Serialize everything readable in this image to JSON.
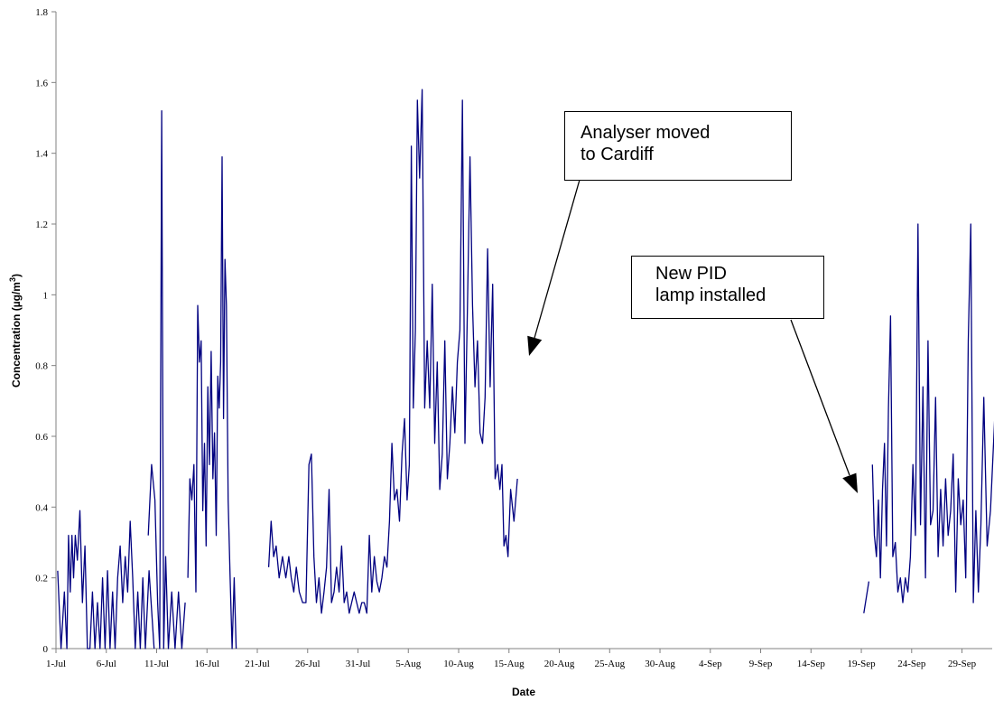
{
  "chart_data": {
    "type": "line",
    "xlabel": "Date",
    "ylabel": "Concentration (µg/m",
    "ylabel_superscript": "3",
    "ylabel_suffix": ")",
    "ylim": [
      0,
      1.8
    ],
    "y_ticks": [
      "0",
      "0.2",
      "0.4",
      "0.6",
      "0.8",
      "1",
      "1.2",
      "1.4",
      "1.6",
      "1.8"
    ],
    "x_ticks": [
      "1-Jul",
      "6-Jul",
      "11-Jul",
      "16-Jul",
      "21-Jul",
      "26-Jul",
      "31-Jul",
      "5-Aug",
      "10-Aug",
      "15-Aug",
      "20-Aug",
      "25-Aug",
      "30-Aug",
      "4-Sep",
      "9-Sep",
      "14-Sep",
      "19-Sep",
      "24-Sep",
      "29-Sep"
    ],
    "x_start": "2000-07-01",
    "x_end": "2000-10-02",
    "grid": false,
    "line_color": "#000080",
    "series": [
      {
        "name": "",
        "segments": [
          [
            [
              "2000-07-01",
              0.22
            ],
            [
              "2000-07-01",
              0.0
            ],
            [
              "2000-07-01",
              0.16
            ],
            [
              "2000-07-02",
              0.0
            ],
            [
              "2000-07-02",
              0.32
            ],
            [
              "2000-07-02",
              0.16
            ],
            [
              "2000-07-02",
              0.32
            ],
            [
              "2000-07-02",
              0.2
            ],
            [
              "2000-07-02",
              0.32
            ],
            [
              "2000-07-03",
              0.25
            ],
            [
              "2000-07-03",
              0.39
            ],
            [
              "2000-07-03",
              0.13
            ],
            [
              "2000-07-03",
              0.29
            ],
            [
              "2000-07-04",
              0.0
            ],
            [
              "2000-07-04",
              0.0
            ],
            [
              "2000-07-04",
              0.16
            ],
            [
              "2000-07-04",
              0.0
            ],
            [
              "2000-07-05",
              0.13
            ],
            [
              "2000-07-05",
              0.0
            ],
            [
              "2000-07-05",
              0.2
            ],
            [
              "2000-07-05",
              0.0
            ],
            [
              "2000-07-06",
              0.22
            ],
            [
              "2000-07-06",
              0.0
            ],
            [
              "2000-07-06",
              0.16
            ],
            [
              "2000-07-06",
              0.0
            ],
            [
              "2000-07-07",
              0.2
            ],
            [
              "2000-07-07",
              0.29
            ],
            [
              "2000-07-07",
              0.13
            ],
            [
              "2000-07-07",
              0.26
            ],
            [
              "2000-07-08",
              0.16
            ],
            [
              "2000-07-08",
              0.36
            ],
            [
              "2000-07-08",
              0.2
            ],
            [
              "2000-07-08",
              0.0
            ],
            [
              "2000-07-09",
              0.16
            ],
            [
              "2000-07-09",
              0.0
            ],
            [
              "2000-07-09",
              0.2
            ],
            [
              "2000-07-09",
              0.0
            ],
            [
              "2000-07-10",
              0.22
            ],
            [
              "2000-07-10",
              0.0
            ]
          ],
          [
            [
              "2000-07-10",
              0.32
            ],
            [
              "2000-07-10",
              0.52
            ],
            [
              "2000-07-10",
              0.42
            ],
            [
              "2000-07-11",
              0.13
            ],
            [
              "2000-07-11",
              0.0
            ],
            [
              "2000-07-11",
              1.52
            ],
            [
              "2000-07-11",
              0.0
            ],
            [
              "2000-07-11",
              0.26
            ],
            [
              "2000-07-12",
              0.0
            ],
            [
              "2000-07-12",
              0.16
            ],
            [
              "2000-07-12",
              0.0
            ],
            [
              "2000-07-13",
              0.16
            ],
            [
              "2000-07-13",
              0.0
            ],
            [
              "2000-07-13",
              0.13
            ]
          ],
          [
            [
              "2000-07-14",
              0.2
            ],
            [
              "2000-07-14",
              0.48
            ],
            [
              "2000-07-14",
              0.42
            ],
            [
              "2000-07-14",
              0.52
            ],
            [
              "2000-07-14",
              0.16
            ],
            [
              "2000-07-15",
              0.97
            ],
            [
              "2000-07-15",
              0.81
            ],
            [
              "2000-07-15",
              0.87
            ],
            [
              "2000-07-15",
              0.39
            ],
            [
              "2000-07-15",
              0.58
            ],
            [
              "2000-07-15",
              0.29
            ],
            [
              "2000-07-16",
              0.74
            ],
            [
              "2000-07-16",
              0.52
            ],
            [
              "2000-07-16",
              0.84
            ],
            [
              "2000-07-16",
              0.48
            ],
            [
              "2000-07-16",
              0.61
            ],
            [
              "2000-07-16",
              0.32
            ],
            [
              "2000-07-17",
              0.77
            ],
            [
              "2000-07-17",
              0.68
            ],
            [
              "2000-07-17",
              0.81
            ],
            [
              "2000-07-17",
              1.39
            ],
            [
              "2000-07-17",
              0.65
            ],
            [
              "2000-07-17",
              1.1
            ],
            [
              "2000-07-17",
              0.97
            ],
            [
              "2000-07-18",
              0.42
            ],
            [
              "2000-07-18",
              0.2
            ],
            [
              "2000-07-18",
              0.0
            ],
            [
              "2000-07-18",
              0.2
            ],
            [
              "2000-07-18",
              0.0
            ]
          ],
          [
            [
              "2000-07-22",
              0.23
            ],
            [
              "2000-07-22",
              0.36
            ],
            [
              "2000-07-22",
              0.26
            ],
            [
              "2000-07-22",
              0.29
            ],
            [
              "2000-07-23",
              0.2
            ],
            [
              "2000-07-23",
              0.26
            ],
            [
              "2000-07-23",
              0.2
            ],
            [
              "2000-07-24",
              0.26
            ],
            [
              "2000-07-24",
              0.2
            ],
            [
              "2000-07-24",
              0.16
            ],
            [
              "2000-07-24",
              0.23
            ],
            [
              "2000-07-25",
              0.16
            ],
            [
              "2000-07-25",
              0.13
            ],
            [
              "2000-07-25",
              0.13
            ],
            [
              "2000-07-26",
              0.52
            ],
            [
              "2000-07-26",
              0.55
            ],
            [
              "2000-07-26",
              0.26
            ],
            [
              "2000-07-26",
              0.13
            ],
            [
              "2000-07-27",
              0.2
            ],
            [
              "2000-07-27",
              0.1
            ],
            [
              "2000-07-27",
              0.16
            ],
            [
              "2000-07-27",
              0.23
            ],
            [
              "2000-07-28",
              0.45
            ],
            [
              "2000-07-28",
              0.13
            ],
            [
              "2000-07-28",
              0.16
            ],
            [
              "2000-07-28",
              0.23
            ],
            [
              "2000-07-29",
              0.16
            ],
            [
              "2000-07-29",
              0.29
            ],
            [
              "2000-07-29",
              0.13
            ],
            [
              "2000-07-29",
              0.16
            ],
            [
              "2000-07-30",
              0.1
            ],
            [
              "2000-07-30",
              0.13
            ],
            [
              "2000-07-30",
              0.16
            ],
            [
              "2000-07-30",
              0.13
            ],
            [
              "2000-07-31",
              0.1
            ],
            [
              "2000-07-31",
              0.13
            ],
            [
              "2000-07-31",
              0.13
            ],
            [
              "2000-07-31",
              0.1
            ],
            [
              "2000-08-01",
              0.32
            ],
            [
              "2000-08-01",
              0.16
            ],
            [
              "2000-08-01",
              0.26
            ],
            [
              "2000-08-01",
              0.19
            ],
            [
              "2000-08-02",
              0.16
            ],
            [
              "2000-08-02",
              0.2
            ],
            [
              "2000-08-02",
              0.26
            ],
            [
              "2000-08-02",
              0.23
            ],
            [
              "2000-08-03",
              0.36
            ],
            [
              "2000-08-03",
              0.58
            ],
            [
              "2000-08-03",
              0.42
            ],
            [
              "2000-08-03",
              0.45
            ],
            [
              "2000-08-04",
              0.36
            ],
            [
              "2000-08-04",
              0.55
            ],
            [
              "2000-08-04",
              0.65
            ],
            [
              "2000-08-04",
              0.42
            ],
            [
              "2000-08-05",
              0.52
            ],
            [
              "2000-08-05",
              1.42
            ],
            [
              "2000-08-05",
              0.68
            ],
            [
              "2000-08-05",
              0.9
            ],
            [
              "2000-08-05",
              1.55
            ],
            [
              "2000-08-06",
              1.33
            ],
            [
              "2000-08-06",
              1.58
            ],
            [
              "2000-08-06",
              0.68
            ],
            [
              "2000-08-06",
              0.87
            ],
            [
              "2000-08-07",
              0.68
            ],
            [
              "2000-08-07",
              1.03
            ],
            [
              "2000-08-07",
              0.58
            ],
            [
              "2000-08-07",
              0.81
            ],
            [
              "2000-08-08",
              0.45
            ],
            [
              "2000-08-08",
              0.55
            ],
            [
              "2000-08-08",
              0.87
            ],
            [
              "2000-08-08",
              0.48
            ],
            [
              "2000-08-09",
              0.58
            ],
            [
              "2000-08-09",
              0.74
            ],
            [
              "2000-08-09",
              0.61
            ],
            [
              "2000-08-09",
              0.81
            ],
            [
              "2000-08-10",
              0.9
            ],
            [
              "2000-08-10",
              1.55
            ],
            [
              "2000-08-10",
              0.58
            ],
            [
              "2000-08-10",
              0.97
            ],
            [
              "2000-08-11",
              1.39
            ],
            [
              "2000-08-11",
              0.97
            ],
            [
              "2000-08-11",
              0.74
            ],
            [
              "2000-08-11",
              0.87
            ],
            [
              "2000-08-12",
              0.61
            ],
            [
              "2000-08-12",
              0.58
            ],
            [
              "2000-08-12",
              0.71
            ],
            [
              "2000-08-12",
              1.13
            ],
            [
              "2000-08-13",
              0.74
            ],
            [
              "2000-08-13",
              1.03
            ],
            [
              "2000-08-13",
              0.48
            ],
            [
              "2000-08-13",
              0.52
            ],
            [
              "2000-08-14",
              0.45
            ],
            [
              "2000-08-14",
              0.52
            ],
            [
              "2000-08-14",
              0.29
            ],
            [
              "2000-08-14",
              0.32
            ],
            [
              "2000-08-14",
              0.26
            ],
            [
              "2000-08-15",
              0.45
            ],
            [
              "2000-08-15",
              0.36
            ],
            [
              "2000-08-15",
              0.48
            ]
          ],
          [
            [
              "2000-09-19",
              0.1
            ],
            [
              "2000-09-19",
              0.19
            ]
          ],
          [
            [
              "2000-09-20",
              0.52
            ],
            [
              "2000-09-20",
              0.32
            ],
            [
              "2000-09-20",
              0.26
            ],
            [
              "2000-09-20",
              0.42
            ],
            [
              "2000-09-20",
              0.2
            ],
            [
              "2000-09-21",
              0.45
            ],
            [
              "2000-09-21",
              0.58
            ],
            [
              "2000-09-21",
              0.29
            ],
            [
              "2000-09-21",
              0.68
            ],
            [
              "2000-09-21",
              0.94
            ],
            [
              "2000-09-22",
              0.26
            ],
            [
              "2000-09-22",
              0.3
            ],
            [
              "2000-09-22",
              0.16
            ],
            [
              "2000-09-22",
              0.2
            ],
            [
              "2000-09-23",
              0.13
            ],
            [
              "2000-09-23",
              0.2
            ],
            [
              "2000-09-23",
              0.16
            ],
            [
              "2000-09-23",
              0.26
            ],
            [
              "2000-09-24",
              0.52
            ],
            [
              "2000-09-24",
              0.32
            ],
            [
              "2000-09-24",
              1.2
            ],
            [
              "2000-09-24",
              0.35
            ],
            [
              "2000-09-25",
              0.74
            ],
            [
              "2000-09-25",
              0.2
            ],
            [
              "2000-09-25",
              0.87
            ],
            [
              "2000-09-25",
              0.35
            ],
            [
              "2000-09-26",
              0.39
            ],
            [
              "2000-09-26",
              0.71
            ],
            [
              "2000-09-26",
              0.26
            ],
            [
              "2000-09-26",
              0.45
            ],
            [
              "2000-09-27",
              0.29
            ],
            [
              "2000-09-27",
              0.48
            ],
            [
              "2000-09-27",
              0.32
            ],
            [
              "2000-09-27",
              0.39
            ],
            [
              "2000-09-28",
              0.55
            ],
            [
              "2000-09-28",
              0.16
            ],
            [
              "2000-09-28",
              0.48
            ],
            [
              "2000-09-28",
              0.35
            ],
            [
              "2000-09-29",
              0.42
            ],
            [
              "2000-09-29",
              0.2
            ],
            [
              "2000-09-29",
              0.87
            ],
            [
              "2000-09-29",
              1.2
            ],
            [
              "2000-09-30",
              0.13
            ],
            [
              "2000-09-30",
              0.39
            ],
            [
              "2000-09-30",
              0.16
            ],
            [
              "2000-09-30",
              0.35
            ],
            [
              "2000-10-01",
              0.71
            ],
            [
              "2000-10-01",
              0.29
            ],
            [
              "2000-10-01",
              0.39
            ],
            [
              "2000-10-02",
              0.81
            ]
          ]
        ]
      }
    ],
    "annotations": [
      {
        "lines": [
          "Analyser moved",
          "to Cardiff"
        ]
      },
      {
        "lines": [
          "New PID",
          "lamp installed"
        ]
      }
    ]
  }
}
